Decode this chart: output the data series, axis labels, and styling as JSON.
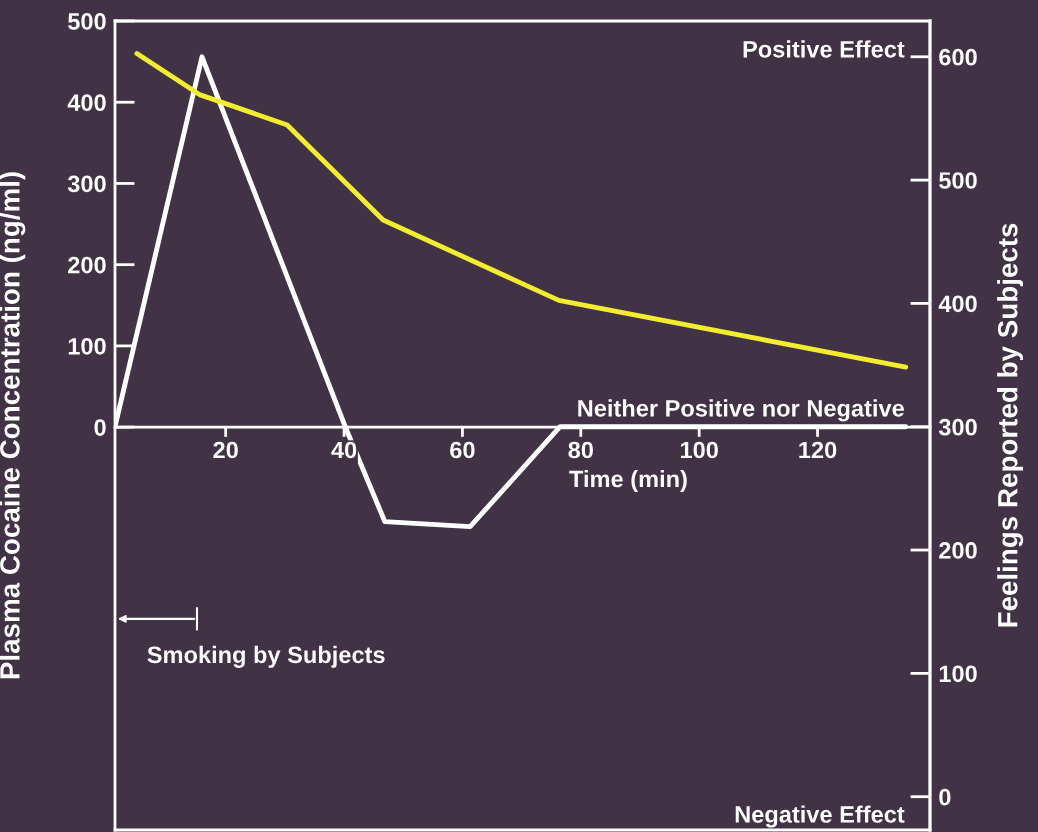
{
  "chart_data": {
    "type": "line",
    "xlabel": "Time (min)",
    "ylabel": "Plasma Cocaine Concentration (ng/ml)",
    "y2label": "Feelings Reported by Subjects",
    "xlim": [
      1.3,
      139
    ],
    "xticks": [
      20,
      40,
      60,
      80,
      100,
      120
    ],
    "ylim": [
      -496,
      500
    ],
    "yticks": [
      0,
      100,
      200,
      300,
      400,
      500
    ],
    "y2lim": [
      -27,
      629
    ],
    "y2ticks": [
      0,
      100,
      200,
      300,
      400,
      500,
      600
    ],
    "grid": false,
    "marker": "none",
    "line_style": "solid",
    "series": [
      {
        "color": "#f2ee2e",
        "x": [
          5,
          15.7,
          30.4,
          46.6,
          76.3,
          134.9
        ],
        "values": [
          460,
          409,
          372,
          255,
          156,
          74
        ]
      },
      {
        "color": "#ffffff",
        "axis": "y2",
        "x": [
          1.3,
          16,
          40.2,
          46.9,
          61.3,
          76.5,
          134.9
        ],
        "values": [
          300,
          600,
          300,
          223,
          219,
          300,
          300
        ]
      }
    ],
    "annotations": [
      "Positive Effect",
      "Neither Positive nor Negative",
      "Negative Effect",
      "Smoking by Subjects"
    ]
  }
}
